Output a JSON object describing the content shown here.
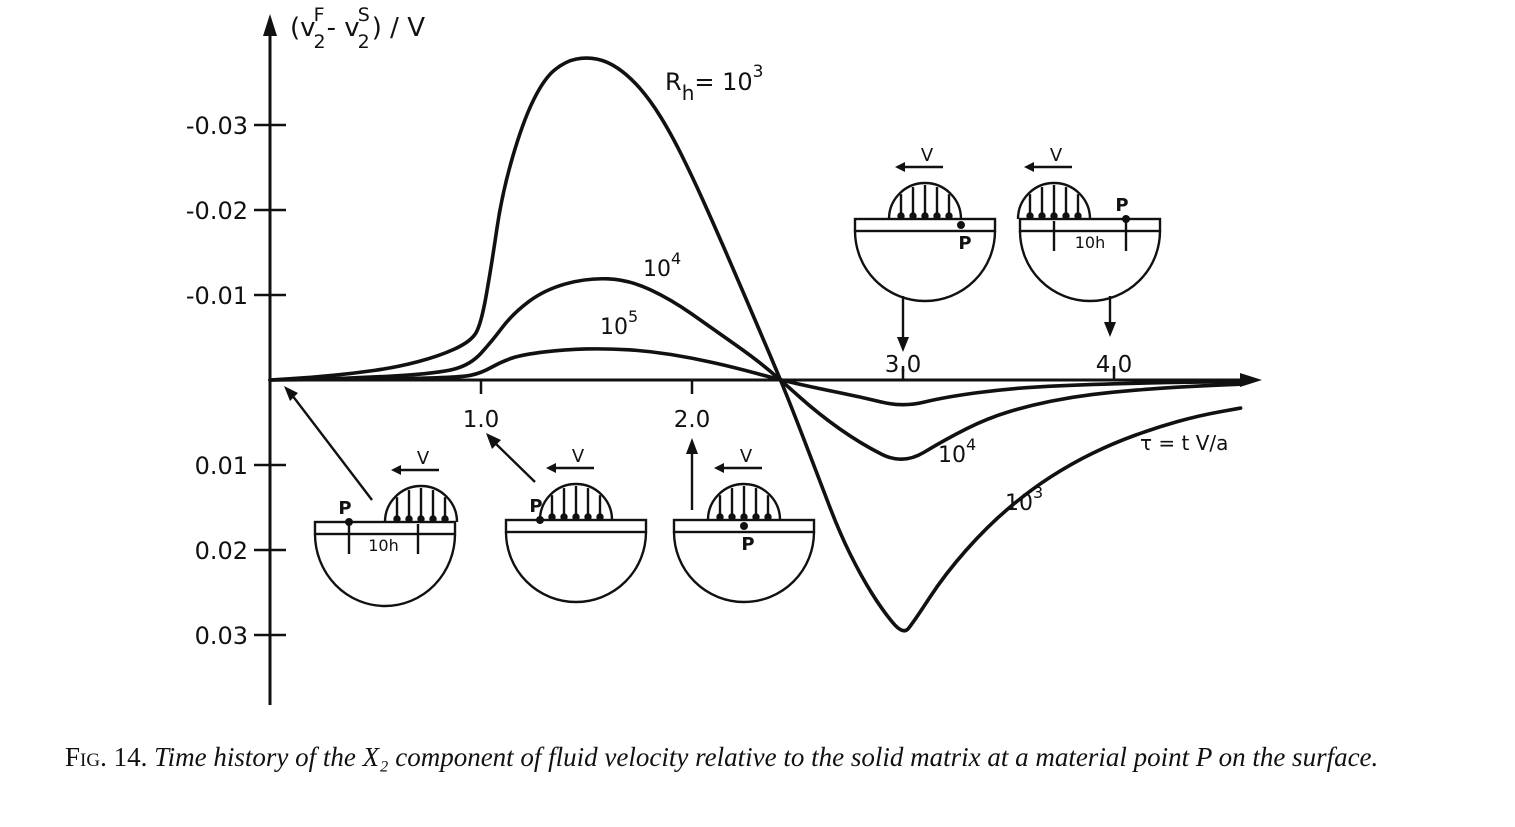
{
  "chart_data": {
    "type": "line",
    "ylabel": "(v₂F − v₂S)/V",
    "xlabel": "τ = t V/a",
    "x_ticks": [
      "1.0",
      "2.0",
      "3.0",
      "4.0"
    ],
    "y_ticks": [
      "-0.03",
      "-0.02",
      "-0.01",
      "0.01",
      "0.02",
      "0.03"
    ],
    "xlim": [
      0,
      4.65
    ],
    "ylim": [
      -0.0385,
      0.0385
    ],
    "y_axis_inverted": true,
    "series": [
      {
        "name": "Rh = 10³",
        "label": "R_h = 10^3",
        "x": [
          0,
          0.2,
          0.4,
          0.6,
          0.8,
          0.95,
          1.0,
          1.05,
          1.1,
          1.2,
          1.3,
          1.4,
          1.5,
          1.6,
          1.7,
          1.8,
          1.9,
          2.0,
          2.1,
          2.2,
          2.3,
          2.42,
          2.5,
          2.6,
          2.7,
          2.8,
          2.9,
          3.0,
          3.05,
          3.2,
          3.4,
          3.6,
          3.8,
          4.0,
          4.2,
          4.4,
          4.6
        ],
        "y": [
          0,
          -0.0003,
          -0.0008,
          -0.0015,
          -0.0028,
          -0.0045,
          -0.0065,
          -0.0135,
          -0.022,
          -0.0305,
          -0.0355,
          -0.0375,
          -0.038,
          -0.0375,
          -0.0358,
          -0.033,
          -0.029,
          -0.024,
          -0.0185,
          -0.0128,
          -0.007,
          0,
          0.005,
          0.0115,
          0.018,
          0.023,
          0.027,
          0.03,
          0.0285,
          0.0228,
          0.0172,
          0.013,
          0.0098,
          0.0074,
          0.0056,
          0.0042,
          0.0033
        ]
      },
      {
        "name": "10⁴",
        "label": "10^4",
        "x": [
          0,
          0.4,
          0.8,
          0.95,
          1.05,
          1.15,
          1.3,
          1.5,
          1.7,
          1.9,
          2.1,
          2.3,
          2.42,
          2.6,
          2.8,
          3.0,
          3.2,
          3.4,
          3.6,
          3.8,
          4.0,
          4.2,
          4.4,
          4.6
        ],
        "y": [
          0,
          -0.0002,
          -0.0008,
          -0.0018,
          -0.0045,
          -0.0078,
          -0.0106,
          -0.012,
          -0.0118,
          -0.0095,
          -0.006,
          -0.0025,
          0,
          0.004,
          0.0075,
          0.01,
          0.007,
          0.0045,
          0.003,
          0.002,
          0.0014,
          0.001,
          0.0007,
          0.0005
        ]
      },
      {
        "name": "10⁵",
        "label": "10^5",
        "x": [
          0,
          0.5,
          0.9,
          1.0,
          1.1,
          1.2,
          1.4,
          1.6,
          1.8,
          2.0,
          2.2,
          2.42,
          2.6,
          2.8,
          3.0,
          3.2,
          3.5,
          3.8,
          4.2,
          4.6
        ],
        "y": [
          0,
          -0.0001,
          -0.0003,
          -0.0008,
          -0.0022,
          -0.003,
          -0.0036,
          -0.0037,
          -0.0034,
          -0.0026,
          -0.0015,
          0,
          0.001,
          0.002,
          0.0032,
          0.002,
          0.001,
          0.0006,
          0.0003,
          0.0002
        ]
      }
    ]
  },
  "curve_labels": {
    "rh_label": "R",
    "rh_sub": "h",
    "rh_eq": "= 10",
    "sup_3": "3",
    "sup_4": "4",
    "sup_5": "5",
    "ten": "10"
  },
  "axis_label": {
    "v": "(v",
    "sub2a": "2",
    "supF": "F",
    "minus_v": "- v",
    "sub2b": "2",
    "supS": "S",
    "tail": ") / V",
    "tau": "τ = t V/a"
  },
  "insets": {
    "v_label": "V",
    "p_label": "P",
    "ten_h_label": "10h"
  },
  "caption": {
    "fig_label": "Fig. 14.",
    "text": "Time history of the X₂ component of fluid velocity relative to the solid matrix at a material point P on the surface."
  }
}
